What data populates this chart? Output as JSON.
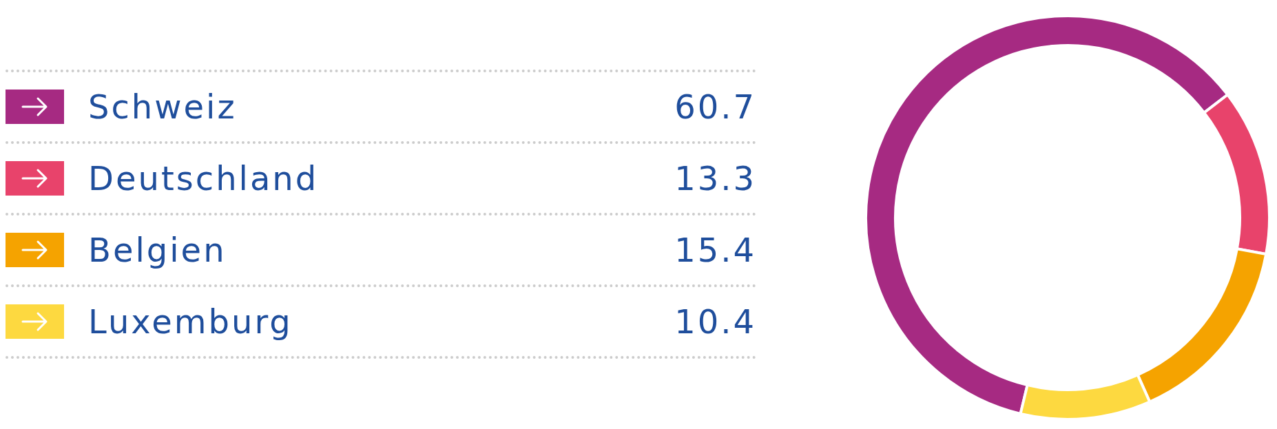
{
  "chart_data": {
    "type": "donut",
    "categories": [
      "Schweiz",
      "Deutschland",
      "Belgien",
      "Luxemburg"
    ],
    "values": [
      60.7,
      13.3,
      15.4,
      10.4
    ],
    "colors": [
      "#a62a82",
      "#e8436b",
      "#f5a300",
      "#fdd940"
    ],
    "data_labels": true,
    "legend": "left"
  }
}
